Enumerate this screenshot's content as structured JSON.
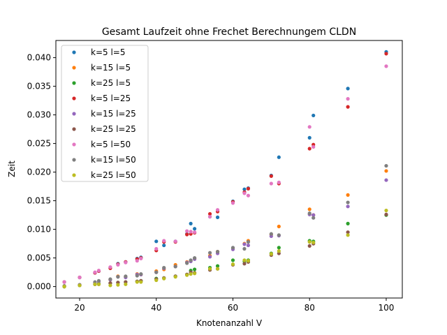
{
  "chart_data": {
    "type": "scatter",
    "title": "Gesamt Laufzeit ohne Frechet Berechnungem CLDN",
    "xlabel": "Knotenanzahl V",
    "ylabel": "Zeit",
    "xlim": [
      13.8,
      104.2
    ],
    "ylim": [
      -0.002,
      0.043
    ],
    "xticks": [
      20,
      40,
      60,
      80,
      100
    ],
    "xtick_labels": [
      "20",
      "40",
      "60",
      "80",
      "100"
    ],
    "yticks": [
      0.0,
      0.005,
      0.01,
      0.015,
      0.02,
      0.025,
      0.03,
      0.035,
      0.04
    ],
    "ytick_labels": [
      "0.000",
      "0.005",
      "0.010",
      "0.015",
      "0.020",
      "0.025",
      "0.030",
      "0.035",
      "0.040"
    ],
    "grid": false,
    "legend_position": "top-left",
    "x": [
      16,
      20,
      24,
      25,
      28,
      30,
      32,
      35,
      36,
      40,
      42,
      45,
      48,
      49,
      50,
      54,
      56,
      60,
      63,
      64,
      70,
      72,
      80,
      81,
      90,
      100
    ],
    "series": [
      {
        "name": "k=5 l=5",
        "color": "#1f77b4",
        "values": [
          0.0008,
          0.0016,
          0.0024,
          0.0027,
          0.0033,
          0.004,
          0.0043,
          0.0049,
          0.0051,
          0.0079,
          0.0072,
          0.0079,
          0.0092,
          0.011,
          0.0101,
          0.0122,
          0.0121,
          0.0149,
          0.017,
          0.0172,
          0.0194,
          0.0226,
          0.026,
          0.0299,
          0.0346,
          0.041
        ]
      },
      {
        "name": "k=15 l=5",
        "color": "#ff7f0e",
        "values": [
          0.0001,
          0.0003,
          0.0007,
          0.0009,
          0.0012,
          0.0018,
          0.0017,
          0.0022,
          0.0021,
          0.0027,
          0.003,
          0.0038,
          0.0043,
          0.0045,
          0.0049,
          0.0054,
          0.0061,
          0.0067,
          0.0075,
          0.008,
          0.0091,
          0.0105,
          0.0135,
          0.0125,
          0.016,
          0.0202
        ]
      },
      {
        "name": "k=25 l=5",
        "color": "#2ca02c",
        "values": [
          0.0,
          0.0002,
          0.0004,
          0.0005,
          0.0006,
          0.0007,
          0.0008,
          0.0009,
          0.001,
          0.0014,
          0.0015,
          0.0018,
          0.0021,
          0.0028,
          0.003,
          0.0033,
          0.0036,
          0.0046,
          0.0044,
          0.0046,
          0.0058,
          0.0068,
          0.008,
          0.0079,
          0.011,
          0.0125
        ]
      },
      {
        "name": "k=5 l=25",
        "color": "#d62728",
        "values": [
          0.0008,
          0.0016,
          0.0024,
          0.0027,
          0.0032,
          0.0039,
          0.0043,
          0.0048,
          0.005,
          0.0063,
          0.0078,
          0.0078,
          0.0091,
          0.0092,
          0.0094,
          0.0127,
          0.0131,
          0.0148,
          0.0165,
          0.0171,
          0.0193,
          0.018,
          0.0241,
          0.0248,
          0.0314,
          0.0407
        ]
      },
      {
        "name": "k=15 l=25",
        "color": "#9467bd",
        "values": [
          0.0001,
          0.0003,
          0.0007,
          0.0009,
          0.0012,
          0.0017,
          0.0016,
          0.0021,
          0.0021,
          0.0025,
          0.0032,
          0.0035,
          0.0042,
          0.0044,
          0.0048,
          0.0052,
          0.0058,
          0.0065,
          0.0074,
          0.0072,
          0.0088,
          0.0089,
          0.0126,
          0.0125,
          0.014,
          0.0186
        ]
      },
      {
        "name": "k=25 l=25",
        "color": "#8c564b",
        "values": [
          0.0,
          0.0002,
          0.0004,
          0.0004,
          0.0006,
          0.0007,
          0.0008,
          0.0009,
          0.001,
          0.0013,
          0.0015,
          0.0018,
          0.0021,
          0.0025,
          0.0024,
          0.0029,
          0.0031,
          0.0038,
          0.004,
          0.0043,
          0.0055,
          0.0058,
          0.0071,
          0.0075,
          0.0095,
          0.0126
        ]
      },
      {
        "name": "k=5 l=50",
        "color": "#e377c2",
        "values": [
          0.0008,
          0.0016,
          0.0025,
          0.0028,
          0.0034,
          0.0038,
          0.0042,
          0.0045,
          0.0049,
          0.0066,
          0.008,
          0.0079,
          0.0097,
          0.0096,
          0.0095,
          0.0122,
          0.0134,
          0.0146,
          0.0163,
          0.0159,
          0.018,
          0.0182,
          0.0279,
          0.0244,
          0.0328,
          0.0385
        ]
      },
      {
        "name": "k=15 l=50",
        "color": "#7f7f7f",
        "values": [
          0.0001,
          0.0003,
          0.0008,
          0.001,
          0.0013,
          0.0017,
          0.0018,
          0.0019,
          0.0022,
          0.0025,
          0.0033,
          0.0035,
          0.0041,
          0.0046,
          0.005,
          0.0059,
          0.0061,
          0.0068,
          0.0066,
          0.0078,
          0.0092,
          0.009,
          0.0128,
          0.012,
          0.0147,
          0.0211
        ]
      },
      {
        "name": "k=25 l=50",
        "color": "#bcbd22",
        "values": [
          0.0,
          0.0002,
          0.0004,
          0.0004,
          0.0002,
          0.0003,
          0.0004,
          0.0008,
          0.0008,
          0.0011,
          0.0014,
          0.0017,
          0.002,
          0.0022,
          0.0023,
          0.0031,
          0.0031,
          0.0039,
          0.0046,
          0.0045,
          0.0057,
          0.0062,
          0.0078,
          0.0077,
          0.009,
          0.0133
        ]
      }
    ]
  }
}
